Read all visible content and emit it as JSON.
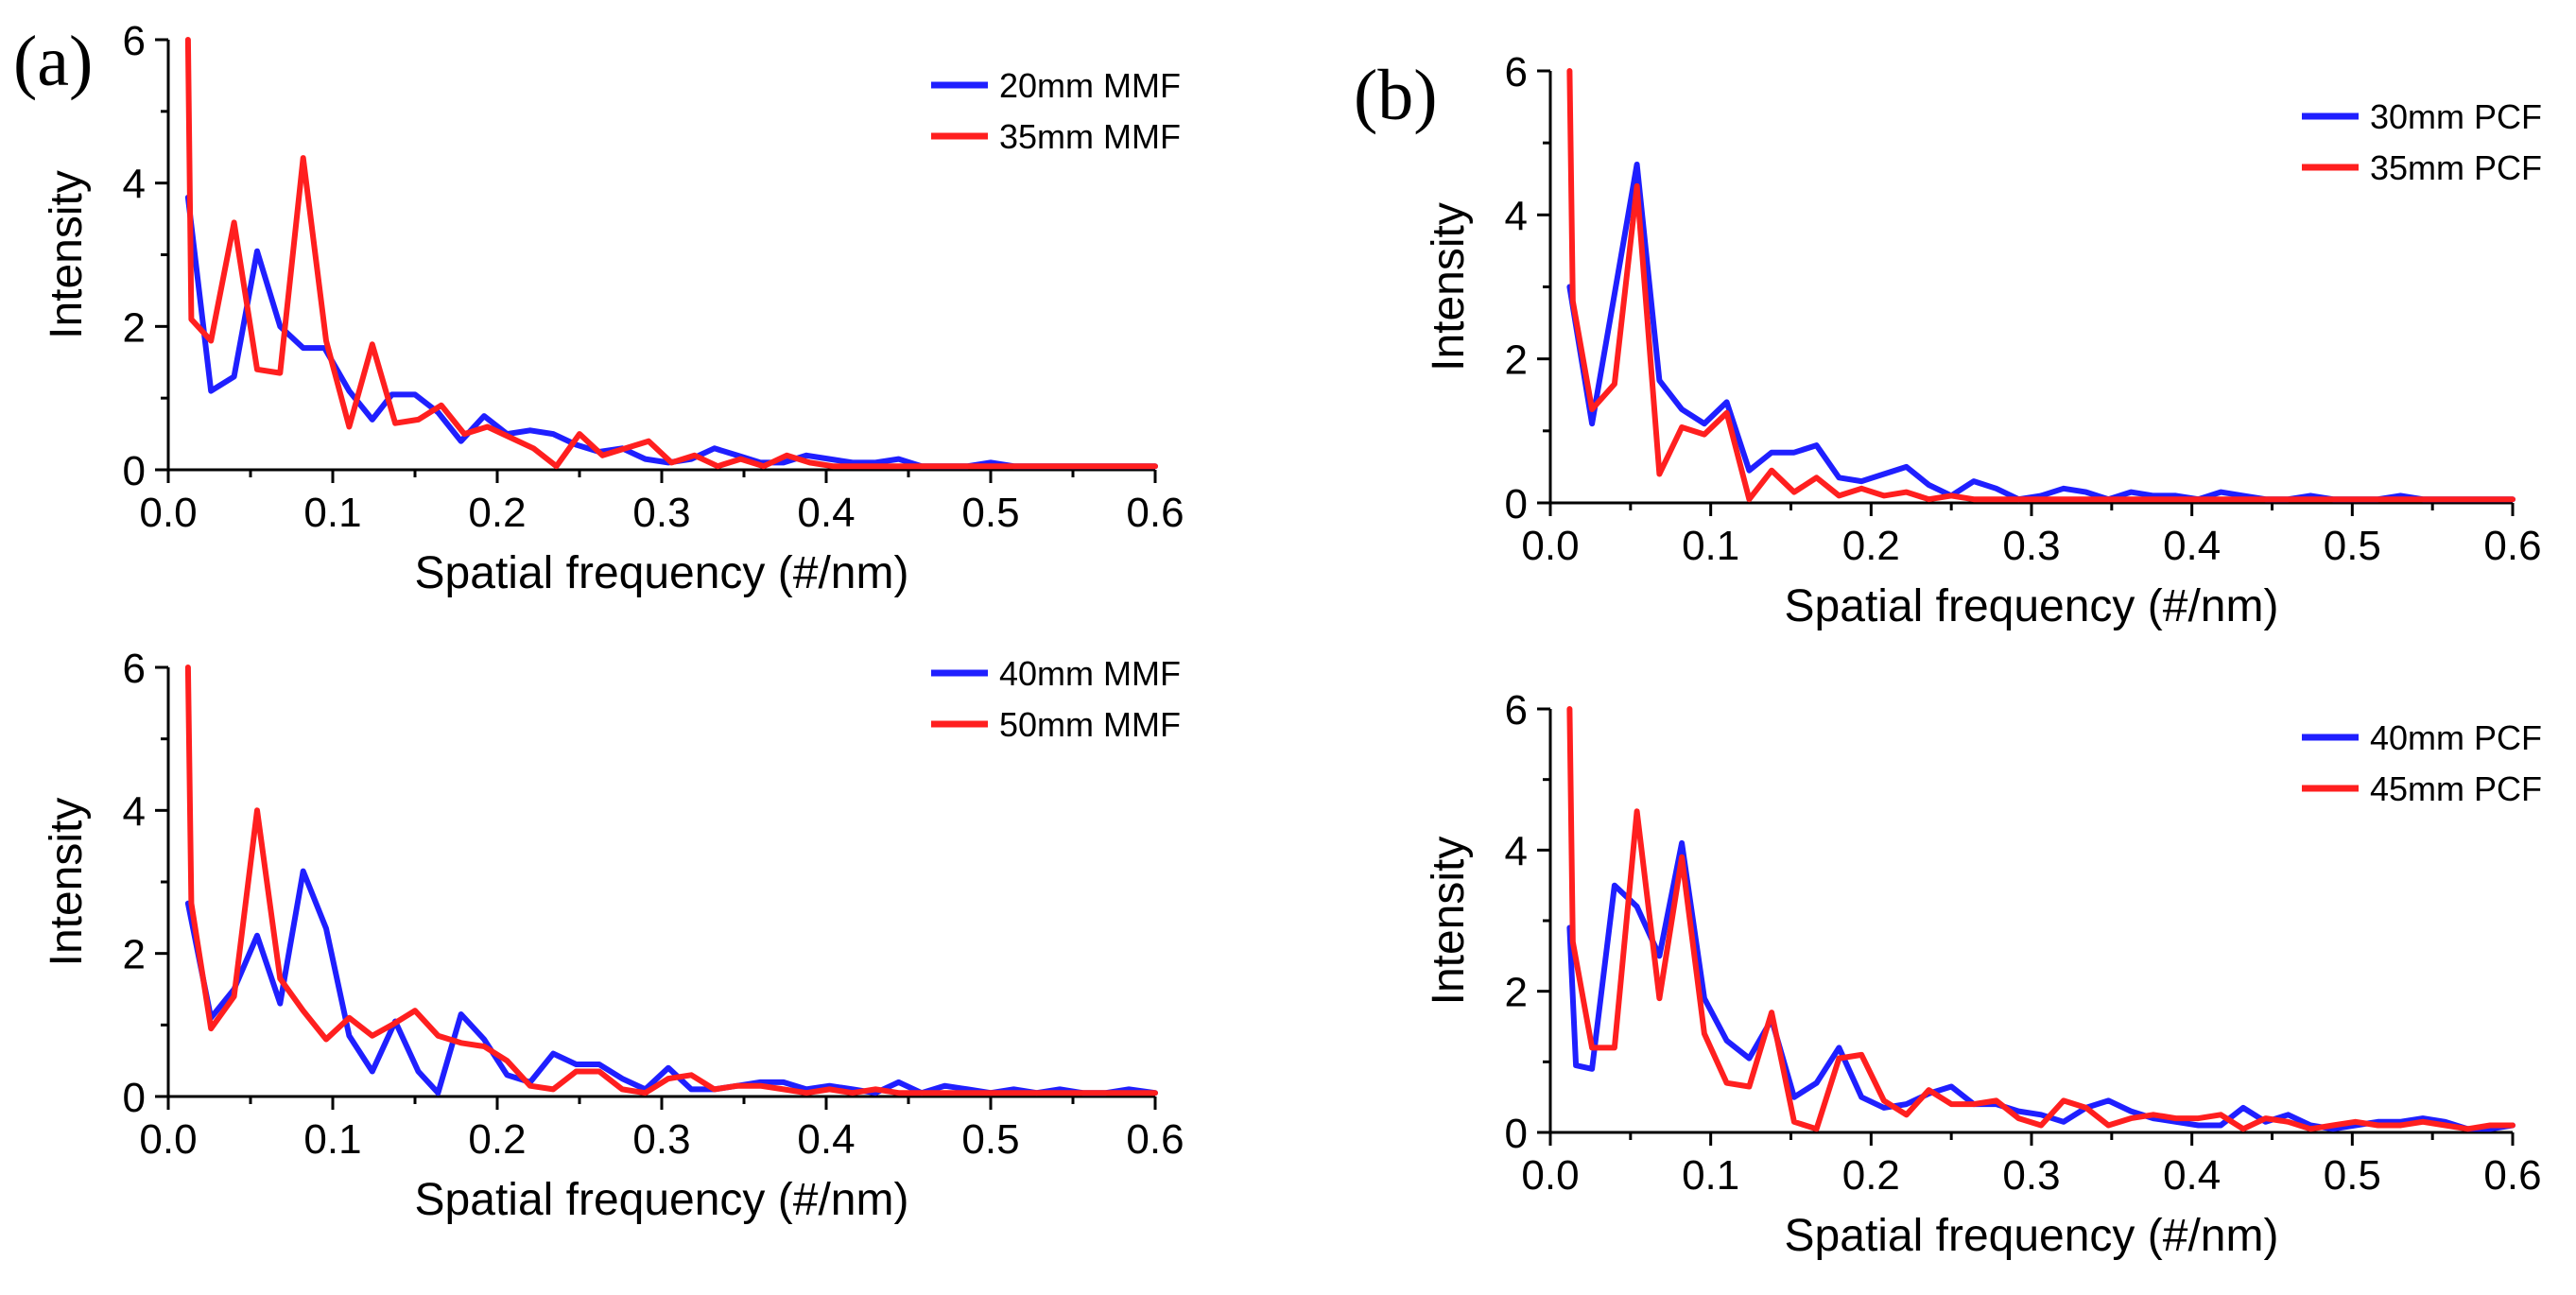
{
  "panel_labels": {
    "a": "(a)",
    "b": "(b)"
  },
  "colors": {
    "series1": "#1f1fff",
    "series2": "#ff1f1f"
  },
  "chart_data": [
    {
      "type": "line",
      "xlabel": "Spatial frequency (#/nm)",
      "ylabel": "Intensity",
      "xlim": [
        0,
        0.6
      ],
      "ylim": [
        0,
        6
      ],
      "xticks": [
        "0.0",
        "0.1",
        "0.2",
        "0.3",
        "0.4",
        "0.5",
        "0.6"
      ],
      "yticks": [
        "0",
        "2",
        "4",
        "6"
      ],
      "legend_position": "top-right",
      "series": [
        {
          "name": "20mm MMF",
          "color": "#1f1fff",
          "x": [
            0.012,
            0.026,
            0.04,
            0.054,
            0.068,
            0.082,
            0.095,
            0.11,
            0.124,
            0.136,
            0.15,
            0.164,
            0.178,
            0.192,
            0.206,
            0.22,
            0.234,
            0.248,
            0.262,
            0.276,
            0.29,
            0.304,
            0.318,
            0.332,
            0.346,
            0.36,
            0.374,
            0.388,
            0.402,
            0.416,
            0.43,
            0.444,
            0.458,
            0.472,
            0.486,
            0.5,
            0.514,
            0.528,
            0.542,
            0.556,
            0.57,
            0.584,
            0.6
          ],
          "y": [
            3.8,
            1.1,
            1.3,
            3.05,
            2.0,
            1.7,
            1.7,
            1.1,
            0.7,
            1.05,
            1.05,
            0.8,
            0.4,
            0.75,
            0.5,
            0.55,
            0.5,
            0.35,
            0.25,
            0.3,
            0.15,
            0.1,
            0.15,
            0.3,
            0.2,
            0.1,
            0.1,
            0.2,
            0.15,
            0.1,
            0.1,
            0.15,
            0.05,
            0.05,
            0.05,
            0.1,
            0.05,
            0.05,
            0.05,
            0.05,
            0.05,
            0.05,
            0.05
          ]
        },
        {
          "name": "35mm MMF",
          "color": "#ff1f1f",
          "x": [
            0.012,
            0.014,
            0.026,
            0.04,
            0.054,
            0.068,
            0.082,
            0.096,
            0.11,
            0.124,
            0.138,
            0.152,
            0.166,
            0.18,
            0.194,
            0.208,
            0.222,
            0.236,
            0.25,
            0.264,
            0.278,
            0.292,
            0.306,
            0.32,
            0.334,
            0.348,
            0.362,
            0.376,
            0.39,
            0.404,
            0.418,
            0.432,
            0.446,
            0.46,
            0.474,
            0.488,
            0.502,
            0.516,
            0.53,
            0.544,
            0.558,
            0.572,
            0.586,
            0.6
          ],
          "y": [
            6.0,
            2.1,
            1.8,
            3.45,
            1.4,
            1.35,
            4.35,
            1.8,
            0.6,
            1.75,
            0.65,
            0.7,
            0.9,
            0.5,
            0.6,
            0.45,
            0.3,
            0.05,
            0.5,
            0.2,
            0.3,
            0.4,
            0.1,
            0.2,
            0.05,
            0.15,
            0.05,
            0.2,
            0.1,
            0.05,
            0.05,
            0.05,
            0.05,
            0.05,
            0.05,
            0.05,
            0.05,
            0.05,
            0.05,
            0.05,
            0.05,
            0.05,
            0.05,
            0.05
          ]
        }
      ]
    },
    {
      "type": "line",
      "xlabel": "Spatial frequency (#/nm)",
      "ylabel": "Intensity",
      "xlim": [
        0,
        0.6
      ],
      "ylim": [
        0,
        6
      ],
      "xticks": [
        "0.0",
        "0.1",
        "0.2",
        "0.3",
        "0.4",
        "0.5",
        "0.6"
      ],
      "yticks": [
        "0",
        "2",
        "4",
        "6"
      ],
      "legend_position": "top-right",
      "series": [
        {
          "name": "40mm MMF",
          "color": "#1f1fff",
          "x": [
            0.012,
            0.026,
            0.04,
            0.054,
            0.068,
            0.082,
            0.096,
            0.11,
            0.124,
            0.138,
            0.152,
            0.164,
            0.178,
            0.192,
            0.206,
            0.22,
            0.234,
            0.248,
            0.262,
            0.276,
            0.29,
            0.304,
            0.318,
            0.332,
            0.346,
            0.36,
            0.374,
            0.388,
            0.402,
            0.416,
            0.43,
            0.444,
            0.458,
            0.472,
            0.486,
            0.5,
            0.514,
            0.528,
            0.542,
            0.556,
            0.57,
            0.584,
            0.6
          ],
          "y": [
            2.7,
            1.1,
            1.5,
            2.25,
            1.3,
            3.15,
            2.35,
            0.85,
            0.35,
            1.05,
            0.35,
            0.05,
            1.15,
            0.8,
            0.3,
            0.2,
            0.6,
            0.45,
            0.45,
            0.25,
            0.1,
            0.4,
            0.1,
            0.1,
            0.15,
            0.2,
            0.2,
            0.1,
            0.15,
            0.1,
            0.05,
            0.2,
            0.05,
            0.15,
            0.1,
            0.05,
            0.1,
            0.05,
            0.1,
            0.05,
            0.05,
            0.1,
            0.05
          ]
        },
        {
          "name": "50mm MMF",
          "color": "#ff1f1f",
          "x": [
            0.012,
            0.014,
            0.026,
            0.04,
            0.054,
            0.068,
            0.082,
            0.096,
            0.11,
            0.124,
            0.136,
            0.15,
            0.164,
            0.178,
            0.192,
            0.206,
            0.22,
            0.234,
            0.248,
            0.262,
            0.276,
            0.29,
            0.304,
            0.318,
            0.332,
            0.346,
            0.36,
            0.374,
            0.388,
            0.402,
            0.416,
            0.43,
            0.444,
            0.458,
            0.472,
            0.486,
            0.5,
            0.514,
            0.528,
            0.542,
            0.556,
            0.57,
            0.584,
            0.6
          ],
          "y": [
            6.0,
            2.7,
            0.95,
            1.4,
            4.0,
            1.65,
            1.2,
            0.8,
            1.1,
            0.85,
            1.0,
            1.2,
            0.85,
            0.75,
            0.7,
            0.5,
            0.15,
            0.1,
            0.35,
            0.35,
            0.1,
            0.05,
            0.25,
            0.3,
            0.1,
            0.15,
            0.15,
            0.1,
            0.05,
            0.1,
            0.05,
            0.1,
            0.05,
            0.05,
            0.05,
            0.05,
            0.05,
            0.05,
            0.05,
            0.05,
            0.05,
            0.05,
            0.05,
            0.05
          ]
        }
      ]
    },
    {
      "type": "line",
      "xlabel": "Spatial frequency (#/nm)",
      "ylabel": "Intensity",
      "xlim": [
        0,
        0.6
      ],
      "ylim": [
        0,
        6
      ],
      "xticks": [
        "0.0",
        "0.1",
        "0.2",
        "0.3",
        "0.4",
        "0.5",
        "0.6"
      ],
      "yticks": [
        "0",
        "2",
        "4",
        "6"
      ],
      "legend_position": "top-right",
      "series": [
        {
          "name": "30mm PCF",
          "color": "#1f1fff",
          "x": [
            0.012,
            0.026,
            0.04,
            0.054,
            0.068,
            0.082,
            0.096,
            0.11,
            0.124,
            0.138,
            0.152,
            0.166,
            0.18,
            0.194,
            0.208,
            0.222,
            0.236,
            0.25,
            0.264,
            0.278,
            0.292,
            0.306,
            0.32,
            0.334,
            0.348,
            0.362,
            0.376,
            0.39,
            0.404,
            0.418,
            0.432,
            0.446,
            0.46,
            0.474,
            0.488,
            0.502,
            0.516,
            0.53,
            0.544,
            0.558,
            0.572,
            0.586,
            0.6
          ],
          "y": [
            3.0,
            1.1,
            2.9,
            4.7,
            1.7,
            1.3,
            1.1,
            1.4,
            0.45,
            0.7,
            0.7,
            0.8,
            0.35,
            0.3,
            0.4,
            0.5,
            0.25,
            0.1,
            0.3,
            0.2,
            0.05,
            0.1,
            0.2,
            0.15,
            0.05,
            0.15,
            0.1,
            0.1,
            0.05,
            0.15,
            0.1,
            0.05,
            0.05,
            0.1,
            0.05,
            0.05,
            0.05,
            0.1,
            0.05,
            0.05,
            0.05,
            0.05,
            0.05
          ]
        },
        {
          "name": "35mm PCF",
          "color": "#ff1f1f",
          "x": [
            0.012,
            0.014,
            0.026,
            0.04,
            0.054,
            0.068,
            0.082,
            0.096,
            0.11,
            0.124,
            0.138,
            0.152,
            0.166,
            0.18,
            0.194,
            0.208,
            0.222,
            0.236,
            0.25,
            0.264,
            0.278,
            0.292,
            0.306,
            0.32,
            0.334,
            0.348,
            0.362,
            0.376,
            0.39,
            0.404,
            0.418,
            0.432,
            0.446,
            0.46,
            0.474,
            0.488,
            0.502,
            0.516,
            0.53,
            0.544,
            0.558,
            0.572,
            0.586,
            0.6
          ],
          "y": [
            6.0,
            2.8,
            1.3,
            1.65,
            4.4,
            0.4,
            1.05,
            0.95,
            1.25,
            0.05,
            0.45,
            0.15,
            0.35,
            0.1,
            0.2,
            0.1,
            0.15,
            0.05,
            0.1,
            0.05,
            0.05,
            0.05,
            0.05,
            0.05,
            0.05,
            0.05,
            0.05,
            0.05,
            0.05,
            0.05,
            0.05,
            0.05,
            0.05,
            0.05,
            0.05,
            0.05,
            0.05,
            0.05,
            0.05,
            0.05,
            0.05,
            0.05,
            0.05,
            0.05
          ]
        }
      ]
    },
    {
      "type": "line",
      "xlabel": "Spatial frequency (#/nm)",
      "ylabel": "Intensity",
      "xlim": [
        0,
        0.6
      ],
      "ylim": [
        0,
        6
      ],
      "xticks": [
        "0.0",
        "0.1",
        "0.2",
        "0.3",
        "0.4",
        "0.5",
        "0.6"
      ],
      "yticks": [
        "0",
        "2",
        "4",
        "6"
      ],
      "legend_position": "top-right",
      "series": [
        {
          "name": "40mm PCF",
          "color": "#1f1fff",
          "x": [
            0.012,
            0.016,
            0.026,
            0.04,
            0.054,
            0.068,
            0.082,
            0.096,
            0.11,
            0.124,
            0.138,
            0.152,
            0.166,
            0.18,
            0.194,
            0.208,
            0.222,
            0.236,
            0.25,
            0.264,
            0.278,
            0.292,
            0.306,
            0.32,
            0.334,
            0.348,
            0.362,
            0.376,
            0.39,
            0.404,
            0.418,
            0.432,
            0.446,
            0.46,
            0.474,
            0.488,
            0.502,
            0.516,
            0.53,
            0.544,
            0.558,
            0.572,
            0.586,
            0.6
          ],
          "y": [
            2.9,
            0.95,
            0.9,
            3.5,
            3.2,
            2.5,
            4.1,
            1.9,
            1.3,
            1.05,
            1.6,
            0.5,
            0.7,
            1.2,
            0.5,
            0.35,
            0.4,
            0.55,
            0.65,
            0.4,
            0.4,
            0.3,
            0.25,
            0.15,
            0.35,
            0.45,
            0.3,
            0.2,
            0.15,
            0.1,
            0.1,
            0.35,
            0.15,
            0.25,
            0.1,
            0.05,
            0.1,
            0.15,
            0.15,
            0.2,
            0.15,
            0.05,
            0.05,
            0.1
          ]
        },
        {
          "name": "45mm PCF",
          "color": "#ff1f1f",
          "x": [
            0.012,
            0.014,
            0.026,
            0.04,
            0.054,
            0.068,
            0.082,
            0.096,
            0.11,
            0.124,
            0.138,
            0.152,
            0.166,
            0.18,
            0.194,
            0.208,
            0.222,
            0.236,
            0.25,
            0.264,
            0.278,
            0.292,
            0.306,
            0.32,
            0.334,
            0.348,
            0.362,
            0.376,
            0.39,
            0.404,
            0.418,
            0.432,
            0.446,
            0.46,
            0.474,
            0.488,
            0.502,
            0.516,
            0.53,
            0.544,
            0.558,
            0.572,
            0.586,
            0.6
          ],
          "y": [
            6.0,
            2.7,
            1.2,
            1.2,
            4.55,
            1.9,
            3.9,
            1.4,
            0.7,
            0.65,
            1.7,
            0.15,
            0.05,
            1.05,
            1.1,
            0.45,
            0.25,
            0.6,
            0.4,
            0.4,
            0.45,
            0.2,
            0.1,
            0.45,
            0.35,
            0.1,
            0.2,
            0.25,
            0.2,
            0.2,
            0.25,
            0.05,
            0.2,
            0.15,
            0.05,
            0.1,
            0.15,
            0.1,
            0.1,
            0.15,
            0.1,
            0.05,
            0.1,
            0.1
          ]
        }
      ]
    }
  ]
}
